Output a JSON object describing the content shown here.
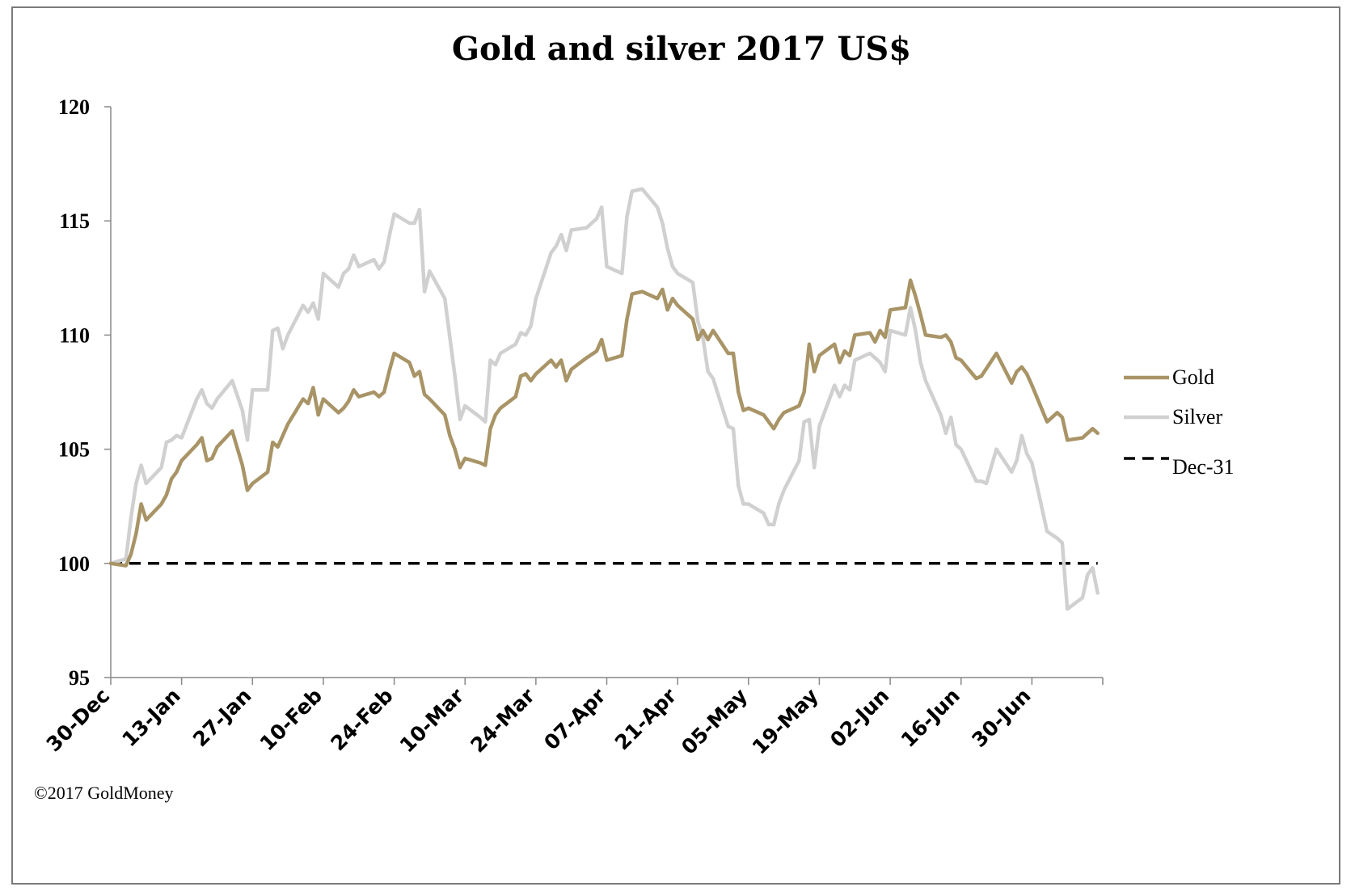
{
  "chart_data": {
    "type": "line",
    "title": "Gold and silver 2017  US$",
    "xlabel": "",
    "ylabel": "",
    "ylim": [
      95,
      120
    ],
    "yticks": [
      95,
      100,
      105,
      110,
      115,
      120
    ],
    "x_range_days": [
      0,
      196
    ],
    "xticks": [
      {
        "label": "30-Dec",
        "day": 0
      },
      {
        "label": "13-Jan",
        "day": 14
      },
      {
        "label": "27-Jan",
        "day": 28
      },
      {
        "label": "10-Feb",
        "day": 42
      },
      {
        "label": "24-Feb",
        "day": 56
      },
      {
        "label": "10-Mar",
        "day": 70
      },
      {
        "label": "24-Mar",
        "day": 84
      },
      {
        "label": "07-Apr",
        "day": 98
      },
      {
        "label": "21-Apr",
        "day": 112
      },
      {
        "label": "05-May",
        "day": 126
      },
      {
        "label": "19-May",
        "day": 140
      },
      {
        "label": "02-Jun",
        "day": 154
      },
      {
        "label": "16-Jun",
        "day": 168
      },
      {
        "label": "30-Jun",
        "day": 182
      }
    ],
    "grid": false,
    "legend_position": "right",
    "series": [
      {
        "name": "Gold",
        "color": "#a89466",
        "style": "solid",
        "points": [
          [
            0,
            100
          ],
          [
            3,
            99.9
          ],
          [
            4,
            100.4
          ],
          [
            5,
            101.3
          ],
          [
            6,
            102.6
          ],
          [
            7,
            101.9
          ],
          [
            10,
            102.6
          ],
          [
            11,
            103.0
          ],
          [
            12,
            103.7
          ],
          [
            13,
            104.0
          ],
          [
            14,
            104.5
          ],
          [
            17,
            105.2
          ],
          [
            18,
            105.5
          ],
          [
            19,
            104.5
          ],
          [
            20,
            104.6
          ],
          [
            21,
            105.1
          ],
          [
            24,
            105.8
          ],
          [
            26,
            104.3
          ],
          [
            27,
            103.2
          ],
          [
            28,
            103.5
          ],
          [
            31,
            104.0
          ],
          [
            32,
            105.3
          ],
          [
            33,
            105.1
          ],
          [
            34,
            105.6
          ],
          [
            35,
            106.1
          ],
          [
            38,
            107.2
          ],
          [
            39,
            107.0
          ],
          [
            40,
            107.7
          ],
          [
            41,
            106.5
          ],
          [
            42,
            107.2
          ],
          [
            45,
            106.6
          ],
          [
            46,
            106.8
          ],
          [
            47,
            107.1
          ],
          [
            48,
            107.6
          ],
          [
            49,
            107.3
          ],
          [
            52,
            107.5
          ],
          [
            53,
            107.3
          ],
          [
            54,
            107.5
          ],
          [
            55,
            108.4
          ],
          [
            56,
            109.2
          ],
          [
            59,
            108.8
          ],
          [
            60,
            108.2
          ],
          [
            61,
            108.4
          ],
          [
            62,
            107.4
          ],
          [
            63,
            107.2
          ],
          [
            66,
            106.5
          ],
          [
            67,
            105.6
          ],
          [
            68,
            105.0
          ],
          [
            69,
            104.2
          ],
          [
            70,
            104.6
          ],
          [
            73,
            104.4
          ],
          [
            74,
            104.3
          ],
          [
            75,
            105.9
          ],
          [
            76,
            106.5
          ],
          [
            77,
            106.8
          ],
          [
            80,
            107.3
          ],
          [
            81,
            108.2
          ],
          [
            82,
            108.3
          ],
          [
            83,
            108.0
          ],
          [
            84,
            108.3
          ],
          [
            87,
            108.9
          ],
          [
            88,
            108.6
          ],
          [
            89,
            108.9
          ],
          [
            90,
            108.0
          ],
          [
            91,
            108.5
          ],
          [
            94,
            109.0
          ],
          [
            96,
            109.3
          ],
          [
            97,
            109.8
          ],
          [
            98,
            108.9
          ],
          [
            101,
            109.1
          ],
          [
            102,
            110.7
          ],
          [
            103,
            111.8
          ],
          [
            105,
            111.9
          ],
          [
            108,
            111.6
          ],
          [
            109,
            112.0
          ],
          [
            110,
            111.1
          ],
          [
            111,
            111.6
          ],
          [
            112,
            111.3
          ],
          [
            115,
            110.7
          ],
          [
            116,
            109.8
          ],
          [
            117,
            110.2
          ],
          [
            118,
            109.8
          ],
          [
            119,
            110.2
          ],
          [
            122,
            109.2
          ],
          [
            123,
            109.2
          ],
          [
            124,
            107.5
          ],
          [
            125,
            106.7
          ],
          [
            126,
            106.8
          ],
          [
            129,
            106.5
          ],
          [
            130,
            106.2
          ],
          [
            131,
            105.9
          ],
          [
            132,
            106.3
          ],
          [
            133,
            106.6
          ],
          [
            136,
            106.9
          ],
          [
            137,
            107.5
          ],
          [
            138,
            109.6
          ],
          [
            139,
            108.4
          ],
          [
            140,
            109.1
          ],
          [
            143,
            109.6
          ],
          [
            144,
            108.8
          ],
          [
            145,
            109.3
          ],
          [
            146,
            109.1
          ],
          [
            147,
            110.0
          ],
          [
            150,
            110.1
          ],
          [
            151,
            109.7
          ],
          [
            152,
            110.2
          ],
          [
            153,
            109.9
          ],
          [
            154,
            111.1
          ],
          [
            157,
            111.2
          ],
          [
            158,
            112.4
          ],
          [
            159,
            111.7
          ],
          [
            160,
            110.9
          ],
          [
            161,
            110.0
          ],
          [
            164,
            109.9
          ],
          [
            165,
            110.0
          ],
          [
            166,
            109.7
          ],
          [
            167,
            109.0
          ],
          [
            168,
            108.9
          ],
          [
            171,
            108.1
          ],
          [
            172,
            108.2
          ],
          [
            175,
            109.2
          ],
          [
            178,
            107.9
          ],
          [
            179,
            108.4
          ],
          [
            180,
            108.6
          ],
          [
            181,
            108.3
          ],
          [
            182,
            107.8
          ],
          [
            185,
            106.2
          ],
          [
            187,
            106.6
          ],
          [
            188,
            106.4
          ],
          [
            189,
            105.4
          ],
          [
            192,
            105.5
          ],
          [
            194,
            105.9
          ],
          [
            195,
            105.7
          ]
        ]
      },
      {
        "name": "Silver",
        "color": "#d0d0d0",
        "style": "solid",
        "points": [
          [
            0,
            100
          ],
          [
            3,
            100.2
          ],
          [
            4,
            102.0
          ],
          [
            5,
            103.5
          ],
          [
            6,
            104.3
          ],
          [
            7,
            103.5
          ],
          [
            10,
            104.2
          ],
          [
            11,
            105.3
          ],
          [
            12,
            105.4
          ],
          [
            13,
            105.6
          ],
          [
            14,
            105.5
          ],
          [
            17,
            107.2
          ],
          [
            18,
            107.6
          ],
          [
            19,
            107.0
          ],
          [
            20,
            106.8
          ],
          [
            21,
            107.2
          ],
          [
            24,
            108.0
          ],
          [
            26,
            106.7
          ],
          [
            27,
            105.4
          ],
          [
            28,
            107.6
          ],
          [
            31,
            107.6
          ],
          [
            32,
            110.2
          ],
          [
            33,
            110.3
          ],
          [
            34,
            109.4
          ],
          [
            35,
            110.0
          ],
          [
            38,
            111.3
          ],
          [
            39,
            111.0
          ],
          [
            40,
            111.4
          ],
          [
            41,
            110.7
          ],
          [
            42,
            112.7
          ],
          [
            45,
            112.1
          ],
          [
            46,
            112.7
          ],
          [
            47,
            112.9
          ],
          [
            48,
            113.5
          ],
          [
            49,
            113.0
          ],
          [
            52,
            113.3
          ],
          [
            53,
            112.9
          ],
          [
            54,
            113.2
          ],
          [
            55,
            114.3
          ],
          [
            56,
            115.3
          ],
          [
            59,
            114.9
          ],
          [
            60,
            114.9
          ],
          [
            61,
            115.5
          ],
          [
            62,
            111.9
          ],
          [
            63,
            112.8
          ],
          [
            66,
            111.6
          ],
          [
            67,
            109.9
          ],
          [
            68,
            108.2
          ],
          [
            69,
            106.3
          ],
          [
            70,
            106.9
          ],
          [
            73,
            106.4
          ],
          [
            74,
            106.2
          ],
          [
            75,
            108.9
          ],
          [
            76,
            108.7
          ],
          [
            77,
            109.2
          ],
          [
            80,
            109.6
          ],
          [
            81,
            110.1
          ],
          [
            82,
            110.0
          ],
          [
            83,
            110.4
          ],
          [
            84,
            111.6
          ],
          [
            87,
            113.6
          ],
          [
            88,
            113.9
          ],
          [
            89,
            114.4
          ],
          [
            90,
            113.7
          ],
          [
            91,
            114.6
          ],
          [
            94,
            114.7
          ],
          [
            96,
            115.1
          ],
          [
            97,
            115.6
          ],
          [
            98,
            113.0
          ],
          [
            101,
            112.7
          ],
          [
            102,
            115.2
          ],
          [
            103,
            116.3
          ],
          [
            105,
            116.4
          ],
          [
            108,
            115.6
          ],
          [
            109,
            114.9
          ],
          [
            110,
            113.8
          ],
          [
            111,
            113.0
          ],
          [
            112,
            112.7
          ],
          [
            115,
            112.3
          ],
          [
            116,
            110.6
          ],
          [
            117,
            109.9
          ],
          [
            118,
            108.4
          ],
          [
            119,
            108.1
          ],
          [
            122,
            106.0
          ],
          [
            123,
            105.9
          ],
          [
            124,
            103.4
          ],
          [
            125,
            102.6
          ],
          [
            126,
            102.6
          ],
          [
            129,
            102.2
          ],
          [
            130,
            101.7
          ],
          [
            131,
            101.7
          ],
          [
            132,
            102.6
          ],
          [
            133,
            103.2
          ],
          [
            136,
            104.5
          ],
          [
            137,
            106.2
          ],
          [
            138,
            106.3
          ],
          [
            139,
            104.2
          ],
          [
            140,
            106.0
          ],
          [
            143,
            107.8
          ],
          [
            144,
            107.3
          ],
          [
            145,
            107.8
          ],
          [
            146,
            107.6
          ],
          [
            147,
            108.9
          ],
          [
            150,
            109.2
          ],
          [
            151,
            109.0
          ],
          [
            152,
            108.8
          ],
          [
            153,
            108.4
          ],
          [
            154,
            110.2
          ],
          [
            157,
            110.0
          ],
          [
            158,
            111.2
          ],
          [
            159,
            110.2
          ],
          [
            160,
            108.8
          ],
          [
            161,
            108.0
          ],
          [
            164,
            106.5
          ],
          [
            165,
            105.7
          ],
          [
            166,
            106.4
          ],
          [
            167,
            105.2
          ],
          [
            168,
            105.0
          ],
          [
            171,
            103.6
          ],
          [
            172,
            103.6
          ],
          [
            173,
            103.5
          ],
          [
            175,
            105.0
          ],
          [
            178,
            104.0
          ],
          [
            179,
            104.5
          ],
          [
            180,
            105.6
          ],
          [
            181,
            104.8
          ],
          [
            182,
            104.4
          ],
          [
            185,
            101.4
          ],
          [
            187,
            101.1
          ],
          [
            188,
            100.9
          ],
          [
            189,
            98.0
          ],
          [
            192,
            98.5
          ],
          [
            193,
            99.5
          ],
          [
            194,
            99.8
          ],
          [
            195,
            98.7
          ]
        ]
      },
      {
        "name": "Dec-31",
        "color": "#000000",
        "style": "dashed",
        "points": [
          [
            0,
            100
          ],
          [
            195,
            100
          ]
        ]
      }
    ]
  },
  "footer": {
    "copyright": "©2017 GoldMoney"
  }
}
